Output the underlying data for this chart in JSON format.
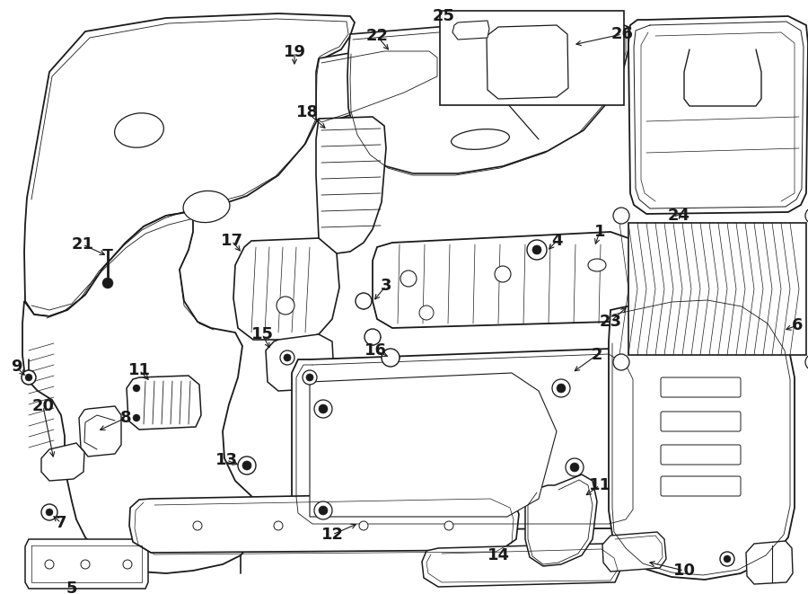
{
  "bg_color": "#ffffff",
  "line_color": "#1a1a1a",
  "fig_width": 9.0,
  "fig_height": 6.61,
  "label_fontsize": 13
}
